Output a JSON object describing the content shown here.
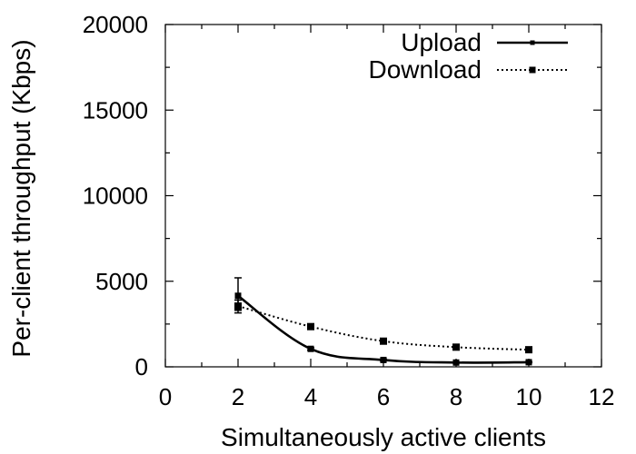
{
  "chart_data": {
    "type": "line",
    "title": "",
    "xlabel": "Simultaneously active clients",
    "ylabel": "Per-client throughput (Kbps)",
    "xlim": [
      0,
      12
    ],
    "ylim": [
      0,
      20000
    ],
    "xticks": [
      0,
      2,
      4,
      6,
      8,
      10,
      12
    ],
    "yticks": [
      0,
      5000,
      10000,
      15000,
      20000
    ],
    "grid": false,
    "legend_position": "top-right",
    "series": [
      {
        "name": "Upload",
        "style": "solid",
        "color": "#000000",
        "x": [
          2,
          4,
          6,
          8,
          10
        ],
        "y": [
          4150,
          1050,
          400,
          250,
          270
        ],
        "error_low": [
          3300,
          980,
          350,
          220,
          240
        ],
        "error_high": [
          5200,
          1120,
          450,
          280,
          300
        ]
      },
      {
        "name": "Download",
        "style": "dotted",
        "color": "#000000",
        "x": [
          2,
          4,
          6,
          8,
          10
        ],
        "y": [
          3550,
          2350,
          1500,
          1150,
          1000
        ],
        "error_low": [
          3150,
          2280,
          1450,
          1100,
          960
        ],
        "error_high": [
          3900,
          2420,
          1550,
          1200,
          1040
        ]
      }
    ]
  }
}
